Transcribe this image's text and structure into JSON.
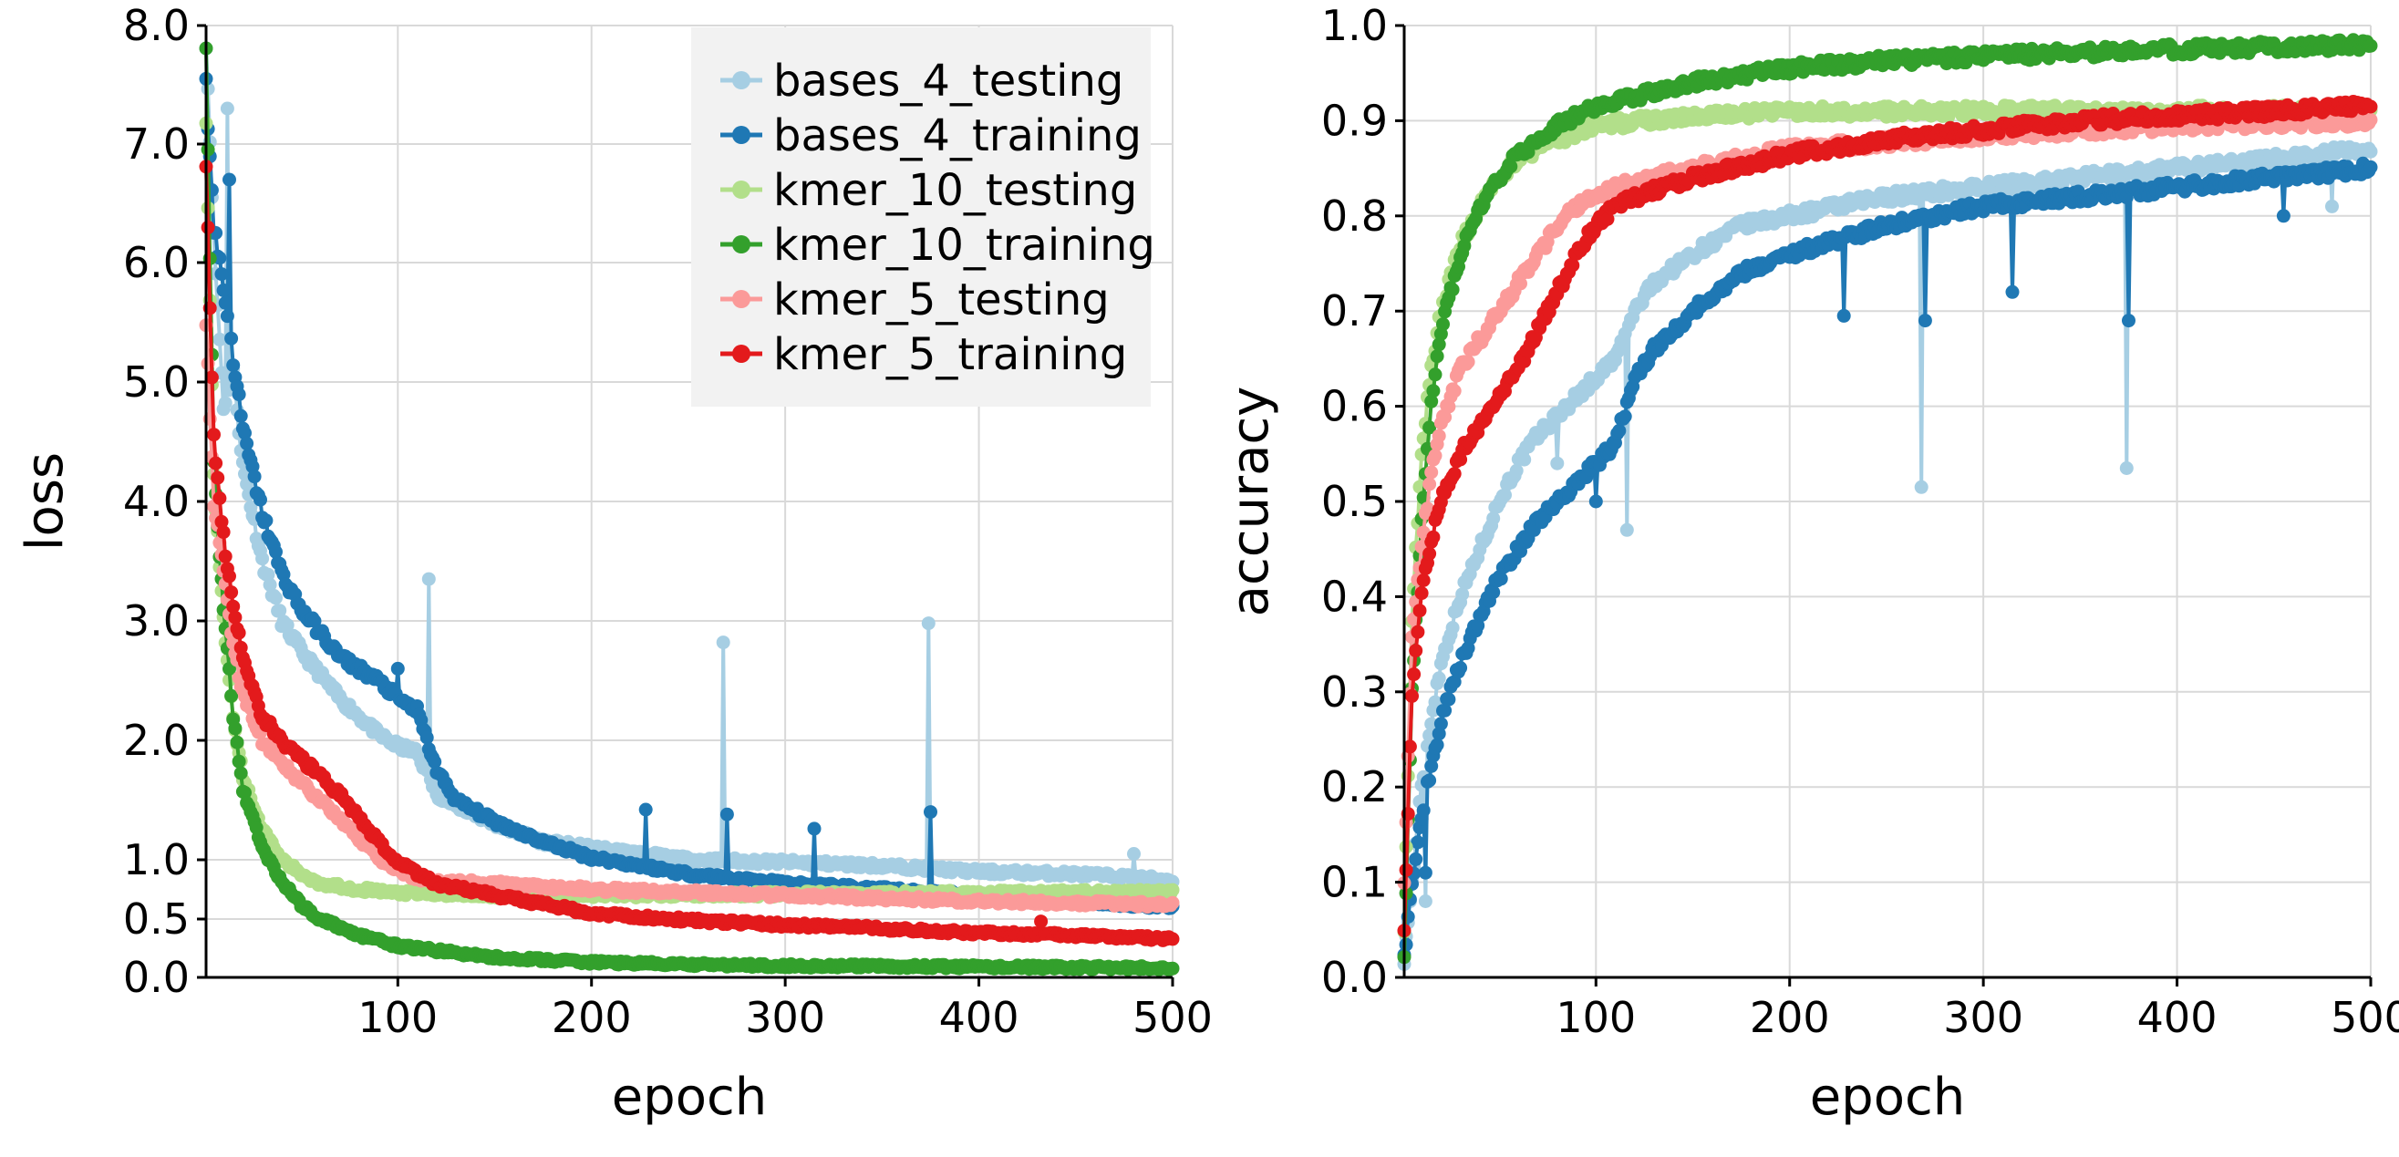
{
  "chart_data": [
    {
      "type": "line",
      "xlabel": "epoch",
      "ylabel": "loss",
      "xlim": [
        1,
        500
      ],
      "ylim": [
        0,
        8
      ],
      "scale_y": "piecewise-sqrt",
      "xticks": [
        100,
        200,
        300,
        400,
        500
      ],
      "xtick_labels": [
        "100",
        "200",
        "300",
        "400",
        "500"
      ],
      "yticks": [
        0,
        0.5,
        1,
        2,
        3,
        4,
        5,
        6,
        7,
        8
      ],
      "ytick_labels": [
        "0.0",
        "0.5",
        "1.0",
        "2.0",
        "3.0",
        "4.0",
        "5.0",
        "6.0",
        "7.0",
        "8.0"
      ],
      "grid": true,
      "legend": "top-right",
      "series": [
        {
          "name": "bases_4_testing",
          "color": "#a6cee3",
          "x": [
            1,
            5,
            10,
            15,
            20,
            30,
            40,
            50,
            60,
            70,
            80,
            90,
            100,
            110,
            120,
            130,
            150,
            175,
            200,
            250,
            300,
            350,
            400,
            450,
            500
          ],
          "y": [
            7.9,
            6.2,
            4.8,
            5.1,
            4.3,
            3.5,
            3.0,
            2.75,
            2.55,
            2.35,
            2.2,
            2.05,
            1.95,
            1.9,
            1.55,
            1.45,
            1.3,
            1.15,
            1.1,
            1.0,
            0.98,
            0.95,
            0.9,
            0.88,
            0.83
          ],
          "spikes": [
            [
              12,
              7.3
            ],
            [
              116,
              3.35
            ],
            [
              268,
              2.82
            ],
            [
              374,
              2.98
            ],
            [
              480,
              1.05
            ]
          ]
        },
        {
          "name": "bases_4_training",
          "color": "#1f78b4",
          "x": [
            1,
            5,
            10,
            15,
            20,
            30,
            40,
            50,
            60,
            70,
            80,
            90,
            100,
            110,
            120,
            130,
            150,
            175,
            200,
            250,
            300,
            350,
            400,
            450,
            500
          ],
          "y": [
            7.5,
            6.3,
            5.8,
            5.2,
            4.6,
            3.9,
            3.4,
            3.1,
            2.9,
            2.7,
            2.6,
            2.5,
            2.35,
            2.25,
            1.75,
            1.5,
            1.32,
            1.15,
            1.02,
            0.88,
            0.8,
            0.75,
            0.7,
            0.65,
            0.6
          ],
          "spikes": [
            [
              13,
              6.7
            ],
            [
              100,
              2.6
            ],
            [
              228,
              1.42
            ],
            [
              270,
              1.38
            ],
            [
              315,
              1.26
            ],
            [
              375,
              1.4
            ]
          ]
        },
        {
          "name": "kmer_10_testing",
          "color": "#b2df8a",
          "x": [
            1,
            5,
            10,
            15,
            20,
            30,
            40,
            50,
            60,
            80,
            100,
            150,
            200,
            300,
            400,
            500
          ],
          "y": [
            7.2,
            4.2,
            3.0,
            2.2,
            1.7,
            1.25,
            1.0,
            0.88,
            0.8,
            0.75,
            0.72,
            0.7,
            0.7,
            0.71,
            0.72,
            0.73
          ],
          "spikes": []
        },
        {
          "name": "kmer_10_training",
          "color": "#33a02c",
          "x": [
            1,
            5,
            10,
            15,
            20,
            30,
            40,
            50,
            60,
            80,
            100,
            150,
            200,
            250,
            300,
            400,
            500
          ],
          "y": [
            7.8,
            4.3,
            3.1,
            2.2,
            1.6,
            1.1,
            0.82,
            0.62,
            0.5,
            0.36,
            0.27,
            0.17,
            0.13,
            0.11,
            0.1,
            0.09,
            0.08
          ],
          "spikes": []
        },
        {
          "name": "kmer_5_testing",
          "color": "#fb9a99",
          "x": [
            1,
            5,
            10,
            15,
            20,
            30,
            40,
            50,
            60,
            70,
            80,
            90,
            100,
            110,
            120,
            150,
            200,
            300,
            400,
            500
          ],
          "y": [
            5.5,
            4.0,
            3.4,
            2.8,
            2.4,
            2.0,
            1.8,
            1.65,
            1.5,
            1.35,
            1.18,
            1.02,
            0.9,
            0.85,
            0.82,
            0.8,
            0.75,
            0.7,
            0.65,
            0.62
          ],
          "spikes": []
        },
        {
          "name": "kmer_5_training",
          "color": "#e31a1c",
          "x": [
            1,
            5,
            10,
            15,
            20,
            30,
            40,
            50,
            60,
            70,
            80,
            90,
            100,
            110,
            120,
            150,
            200,
            250,
            300,
            350,
            400,
            450,
            500
          ],
          "y": [
            6.8,
            4.5,
            3.7,
            3.1,
            2.7,
            2.2,
            2.0,
            1.85,
            1.7,
            1.55,
            1.35,
            1.15,
            0.98,
            0.88,
            0.8,
            0.7,
            0.55,
            0.49,
            0.45,
            0.42,
            0.38,
            0.36,
            0.33
          ],
          "spikes": [
            [
              432,
              0.48
            ]
          ]
        }
      ]
    },
    {
      "type": "line",
      "xlabel": "epoch",
      "ylabel": "accuracy",
      "xlim": [
        1,
        500
      ],
      "ylim": [
        0,
        1
      ],
      "xticks": [
        100,
        200,
        300,
        400,
        500
      ],
      "xtick_labels": [
        "100",
        "200",
        "300",
        "400",
        "500"
      ],
      "yticks": [
        0,
        0.1,
        0.2,
        0.3,
        0.4,
        0.5,
        0.6,
        0.7,
        0.8,
        0.9,
        1.0
      ],
      "ytick_labels": [
        "0.0",
        "0.1",
        "0.2",
        "0.3",
        "0.4",
        "0.5",
        "0.6",
        "0.7",
        "0.8",
        "0.9",
        "1.0"
      ],
      "grid": true,
      "series": [
        {
          "name": "bases_4_testing",
          "color": "#a6cee3",
          "x": [
            1,
            5,
            10,
            15,
            20,
            30,
            40,
            50,
            60,
            70,
            80,
            90,
            100,
            110,
            120,
            130,
            150,
            175,
            200,
            250,
            300,
            350,
            400,
            450,
            500
          ],
          "y": [
            0.02,
            0.1,
            0.2,
            0.27,
            0.33,
            0.4,
            0.45,
            0.5,
            0.54,
            0.57,
            0.59,
            0.61,
            0.63,
            0.65,
            0.7,
            0.73,
            0.76,
            0.79,
            0.8,
            0.82,
            0.83,
            0.84,
            0.85,
            0.86,
            0.87
          ],
          "spikes": [
            [
              12,
              0.08
            ],
            [
              80,
              0.54
            ],
            [
              116,
              0.47
            ],
            [
              268,
              0.515
            ],
            [
              374,
              0.535
            ],
            [
              480,
              0.81
            ]
          ]
        },
        {
          "name": "bases_4_training",
          "color": "#1f78b4",
          "x": [
            1,
            5,
            10,
            15,
            20,
            30,
            40,
            50,
            60,
            70,
            80,
            90,
            100,
            110,
            120,
            130,
            150,
            175,
            200,
            250,
            300,
            350,
            400,
            450,
            500
          ],
          "y": [
            0.02,
            0.1,
            0.17,
            0.22,
            0.27,
            0.33,
            0.38,
            0.42,
            0.45,
            0.48,
            0.5,
            0.52,
            0.54,
            0.56,
            0.63,
            0.66,
            0.7,
            0.74,
            0.76,
            0.79,
            0.81,
            0.82,
            0.83,
            0.84,
            0.85
          ],
          "spikes": [
            [
              12,
              0.11
            ],
            [
              100,
              0.5
            ],
            [
              228,
              0.695
            ],
            [
              270,
              0.69
            ],
            [
              315,
              0.72
            ],
            [
              375,
              0.69
            ],
            [
              455,
              0.8
            ]
          ]
        },
        {
          "name": "kmer_10_testing",
          "color": "#b2df8a",
          "x": [
            1,
            5,
            10,
            15,
            20,
            30,
            40,
            50,
            60,
            80,
            100,
            150,
            200,
            300,
            400,
            500
          ],
          "y": [
            0.05,
            0.38,
            0.55,
            0.64,
            0.7,
            0.77,
            0.81,
            0.84,
            0.86,
            0.88,
            0.895,
            0.905,
            0.91,
            0.91,
            0.91,
            0.91
          ],
          "spikes": []
        },
        {
          "name": "kmer_10_training",
          "color": "#33a02c",
          "x": [
            1,
            5,
            10,
            15,
            20,
            30,
            40,
            50,
            60,
            80,
            100,
            150,
            200,
            250,
            300,
            400,
            500
          ],
          "y": [
            0.02,
            0.3,
            0.48,
            0.6,
            0.68,
            0.76,
            0.81,
            0.84,
            0.865,
            0.895,
            0.915,
            0.94,
            0.955,
            0.963,
            0.968,
            0.975,
            0.98
          ],
          "spikes": []
        },
        {
          "name": "kmer_5_testing",
          "color": "#fb9a99",
          "x": [
            1,
            5,
            10,
            15,
            20,
            30,
            40,
            50,
            60,
            70,
            80,
            90,
            100,
            110,
            120,
            150,
            200,
            300,
            400,
            500
          ],
          "y": [
            0.1,
            0.36,
            0.45,
            0.53,
            0.58,
            0.64,
            0.67,
            0.7,
            0.73,
            0.76,
            0.79,
            0.81,
            0.82,
            0.83,
            0.835,
            0.85,
            0.87,
            0.885,
            0.895,
            0.9
          ],
          "spikes": []
        },
        {
          "name": "kmer_5_training",
          "color": "#e31a1c",
          "x": [
            1,
            5,
            10,
            15,
            20,
            30,
            40,
            50,
            60,
            70,
            80,
            90,
            100,
            110,
            120,
            150,
            200,
            250,
            300,
            350,
            400,
            450,
            500
          ],
          "y": [
            0.05,
            0.3,
            0.4,
            0.46,
            0.5,
            0.55,
            0.58,
            0.61,
            0.64,
            0.68,
            0.72,
            0.76,
            0.79,
            0.81,
            0.82,
            0.84,
            0.865,
            0.88,
            0.89,
            0.9,
            0.905,
            0.91,
            0.915
          ],
          "spikes": []
        }
      ]
    }
  ]
}
